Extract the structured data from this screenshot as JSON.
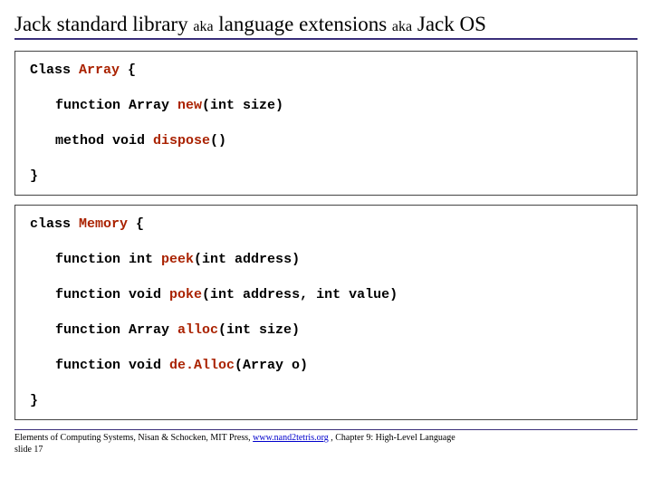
{
  "title": {
    "part1": "Jack standard library ",
    "aka1": "aka",
    "part2": " language extensions ",
    "aka2": "aka",
    "part3": " Jack OS"
  },
  "array_class": {
    "open": "Class ",
    "name": "Array",
    "open2": " {",
    "line1_a": "function Array ",
    "line1_b": "new",
    "line1_c": "(int size)",
    "line2_a": "method void ",
    "line2_b": "dispose",
    "line2_c": "()",
    "close": "}"
  },
  "memory_class": {
    "open": "class ",
    "name": "Memory",
    "open2": " {",
    "line1_a": "function int ",
    "line1_b": "peek",
    "line1_c": "(int address)",
    "line2_a": "function void ",
    "line2_b": "poke",
    "line2_c": "(int address, int value)",
    "line3_a": "function Array ",
    "line3_b": "alloc",
    "line3_c": "(int size)",
    "line4_a": "function void ",
    "line4_b": "de.Alloc",
    "line4_c": "(Array o)",
    "close": "}"
  },
  "footer": {
    "text1": "Elements of Computing Systems, Nisan & Schocken, MIT Press, ",
    "link": "www.nand2tetris.org",
    "text2": " , Chapter 9: High-Level Language",
    "slide": "slide 17"
  },
  "colors": {
    "accent": "#3a2f7a",
    "keyword": "#aa2200"
  }
}
